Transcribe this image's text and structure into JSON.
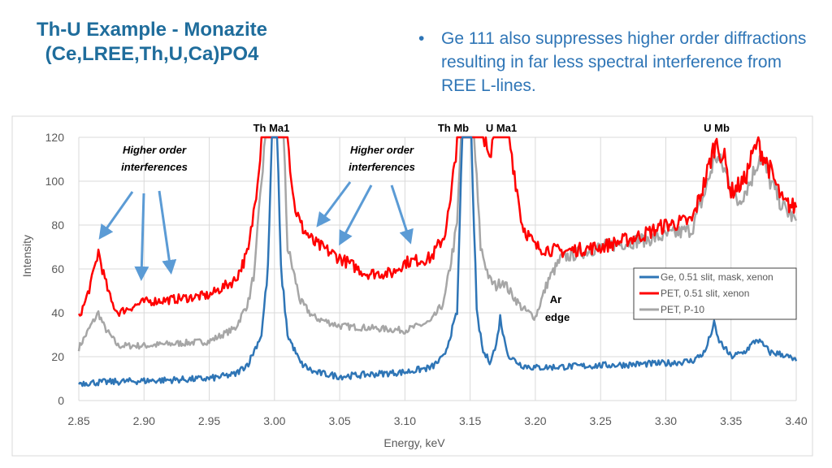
{
  "slide": {
    "title_line1": "Th-U Example - Monazite",
    "title_line2": "(Ce,LREE,Th,U,Ca)PO4",
    "bullet": "Ge 111 also suppresses higher order diffractions resulting in far less spectral interference from REE L-lines."
  },
  "chart_data": {
    "type": "line",
    "xlabel": "Energy, keV",
    "ylabel": "Intensity",
    "xlim": [
      2.85,
      3.4
    ],
    "ylim": [
      0,
      120
    ],
    "xticks": [
      "2.85",
      "2.90",
      "2.95",
      "3.00",
      "3.05",
      "3.10",
      "3.15",
      "3.20",
      "3.25",
      "3.30",
      "3.35",
      "3.40"
    ],
    "yticks": [
      "0",
      "20",
      "40",
      "60",
      "80",
      "100",
      "120"
    ],
    "grid": true,
    "legend": "right",
    "annotations": {
      "th_ma1": "Th Ma1",
      "th_mb": "Th Mb",
      "u_ma1": "U Ma1",
      "u_mb": "U Mb",
      "hoi1_a": "Higher order",
      "hoi1_b": "interferences",
      "hoi2_a": "Higher order",
      "hoi2_b": "interferences",
      "ar_a": "Ar",
      "ar_b": "edge"
    },
    "series": [
      {
        "name": "Ge, 0.51 slit, mask, xenon",
        "color": "#2e75b6",
        "points": [
          [
            2.85,
            8
          ],
          [
            2.9,
            9
          ],
          [
            2.95,
            10
          ],
          [
            2.97,
            12
          ],
          [
            2.98,
            17
          ],
          [
            2.99,
            30
          ],
          [
            2.995,
            60
          ],
          [
            2.998,
            120
          ],
          [
            3.002,
            120
          ],
          [
            3.005,
            60
          ],
          [
            3.01,
            30
          ],
          [
            3.02,
            17
          ],
          [
            3.03,
            13
          ],
          [
            3.05,
            11
          ],
          [
            3.1,
            13
          ],
          [
            3.12,
            15
          ],
          [
            3.13,
            20
          ],
          [
            3.14,
            40
          ],
          [
            3.144,
            120
          ],
          [
            3.151,
            120
          ],
          [
            3.155,
            40
          ],
          [
            3.16,
            22
          ],
          [
            3.165,
            18
          ],
          [
            3.17,
            25
          ],
          [
            3.173,
            38
          ],
          [
            3.176,
            28
          ],
          [
            3.18,
            20
          ],
          [
            3.19,
            16
          ],
          [
            3.2,
            15
          ],
          [
            3.25,
            16
          ],
          [
            3.3,
            17
          ],
          [
            3.32,
            18
          ],
          [
            3.33,
            22
          ],
          [
            3.337,
            35
          ],
          [
            3.34,
            28
          ],
          [
            3.35,
            20
          ],
          [
            3.36,
            22
          ],
          [
            3.37,
            28
          ],
          [
            3.375,
            25
          ],
          [
            3.38,
            22
          ],
          [
            3.39,
            21
          ],
          [
            3.4,
            18
          ]
        ]
      },
      {
        "name": "PET, 0.51 slit, xenon",
        "color": "#ff0000",
        "points": [
          [
            2.85,
            38
          ],
          [
            2.855,
            45
          ],
          [
            2.86,
            55
          ],
          [
            2.865,
            68
          ],
          [
            2.87,
            55
          ],
          [
            2.875,
            45
          ],
          [
            2.88,
            40
          ],
          [
            2.9,
            45
          ],
          [
            2.92,
            46
          ],
          [
            2.95,
            48
          ],
          [
            2.97,
            55
          ],
          [
            2.98,
            68
          ],
          [
            2.985,
            90
          ],
          [
            2.99,
            120
          ],
          [
            3.01,
            120
          ],
          [
            3.015,
            90
          ],
          [
            3.02,
            80
          ],
          [
            3.03,
            72
          ],
          [
            3.05,
            65
          ],
          [
            3.07,
            58
          ],
          [
            3.09,
            58
          ],
          [
            3.1,
            63
          ],
          [
            3.12,
            65
          ],
          [
            3.13,
            75
          ],
          [
            3.135,
            90
          ],
          [
            3.14,
            120
          ],
          [
            3.16,
            120
          ],
          [
            3.165,
            108
          ],
          [
            3.168,
            120
          ],
          [
            3.18,
            120
          ],
          [
            3.185,
            100
          ],
          [
            3.19,
            80
          ],
          [
            3.2,
            70
          ],
          [
            3.22,
            68
          ],
          [
            3.25,
            70
          ],
          [
            3.28,
            75
          ],
          [
            3.3,
            80
          ],
          [
            3.32,
            82
          ],
          [
            3.33,
            100
          ],
          [
            3.338,
            118
          ],
          [
            3.345,
            110
          ],
          [
            3.35,
            95
          ],
          [
            3.36,
            100
          ],
          [
            3.37,
            118
          ],
          [
            3.38,
            105
          ],
          [
            3.39,
            90
          ],
          [
            3.4,
            88
          ]
        ]
      },
      {
        "name": "PET, P-10",
        "color": "#a6a6a6",
        "points": [
          [
            2.85,
            24
          ],
          [
            2.86,
            35
          ],
          [
            2.865,
            40
          ],
          [
            2.87,
            33
          ],
          [
            2.88,
            25
          ],
          [
            2.9,
            25
          ],
          [
            2.95,
            27
          ],
          [
            2.97,
            33
          ],
          [
            2.98,
            45
          ],
          [
            2.985,
            60
          ],
          [
            2.99,
            100
          ],
          [
            2.993,
            120
          ],
          [
            3.007,
            120
          ],
          [
            3.01,
            70
          ],
          [
            3.02,
            45
          ],
          [
            3.03,
            38
          ],
          [
            3.05,
            34
          ],
          [
            3.1,
            32
          ],
          [
            3.12,
            36
          ],
          [
            3.13,
            45
          ],
          [
            3.14,
            80
          ],
          [
            3.143,
            120
          ],
          [
            3.153,
            120
          ],
          [
            3.158,
            70
          ],
          [
            3.165,
            55
          ],
          [
            3.17,
            52
          ],
          [
            3.175,
            55
          ],
          [
            3.18,
            50
          ],
          [
            3.19,
            42
          ],
          [
            3.2,
            38
          ],
          [
            3.21,
            55
          ],
          [
            3.22,
            65
          ],
          [
            3.25,
            70
          ],
          [
            3.3,
            75
          ],
          [
            3.32,
            78
          ],
          [
            3.33,
            95
          ],
          [
            3.338,
            112
          ],
          [
            3.345,
            105
          ],
          [
            3.355,
            90
          ],
          [
            3.365,
            100
          ],
          [
            3.372,
            112
          ],
          [
            3.38,
            100
          ],
          [
            3.39,
            88
          ],
          [
            3.4,
            82
          ]
        ]
      }
    ]
  }
}
